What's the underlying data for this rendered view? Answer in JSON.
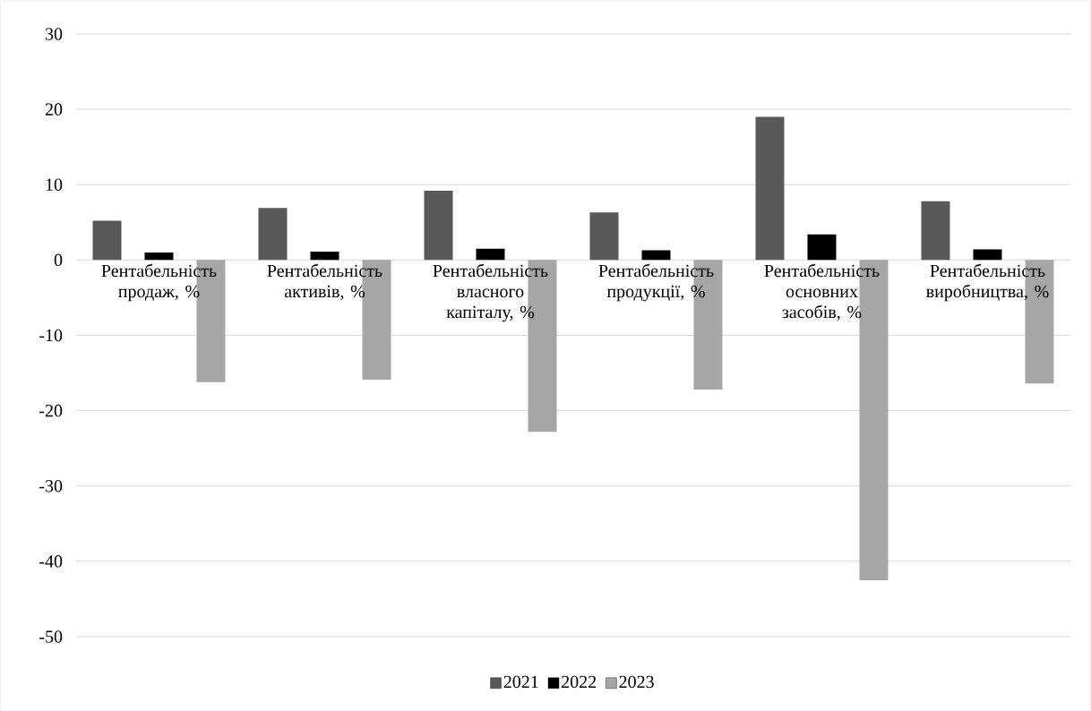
{
  "chart_data": {
    "type": "bar",
    "categories": [
      "Рентабельність продаж, %",
      "Рентабельність активів, %",
      "Рентабельність власного капіталу, %",
      "Рентабельність продукції, %",
      "Рентабельність основних засобів, %",
      "Рентабельність виробництва, %"
    ],
    "series": [
      {
        "name": "2021",
        "color": "#595959",
        "values": [
          5.2,
          6.9,
          9.2,
          6.3,
          19.0,
          7.8
        ]
      },
      {
        "name": "2022",
        "color": "#000000",
        "values": [
          1.0,
          1.1,
          1.5,
          1.3,
          3.4,
          1.4
        ]
      },
      {
        "name": "2023",
        "color": "#a6a6a6",
        "values": [
          -16.2,
          -15.9,
          -22.8,
          -17.2,
          -42.5,
          -16.4
        ]
      }
    ],
    "ylim": [
      -50,
      30
    ],
    "yticks": [
      -50,
      -40,
      -30,
      -20,
      -10,
      0,
      10,
      20,
      30
    ],
    "grid": "y",
    "legend": "bottom"
  }
}
